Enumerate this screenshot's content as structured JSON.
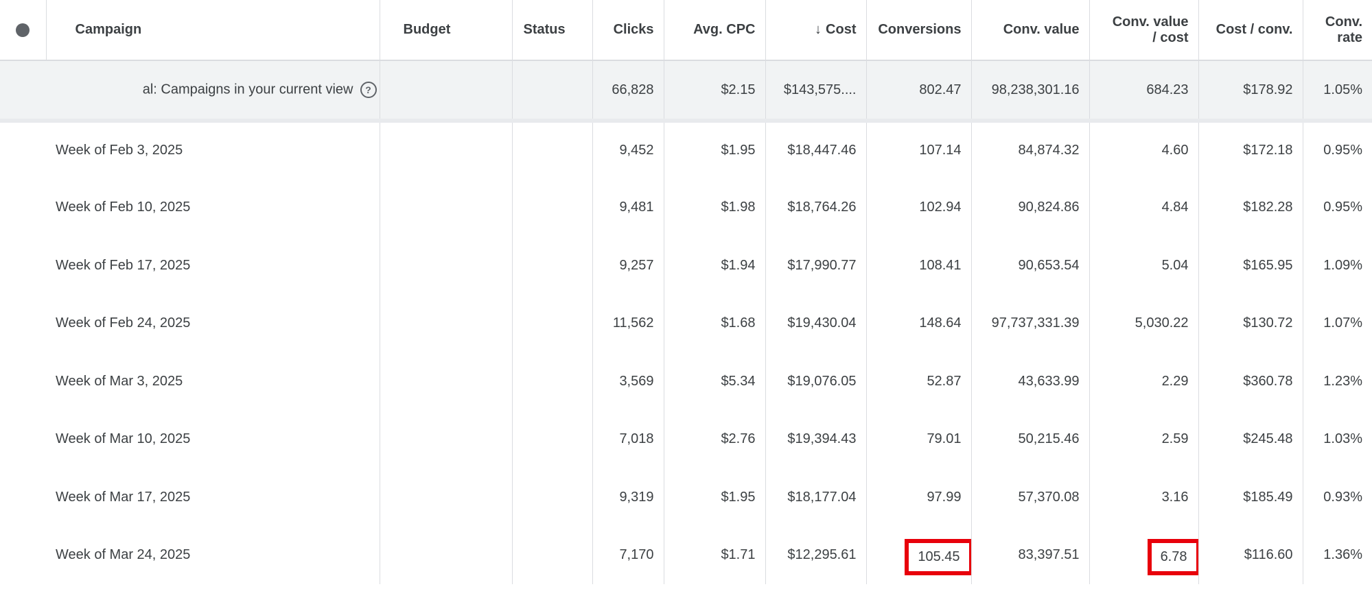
{
  "columns": {
    "campaign": "Campaign",
    "budget": "Budget",
    "status": "Status",
    "clicks": "Clicks",
    "avg_cpc": "Avg. CPC",
    "cost_arrow": "↓",
    "cost": "Cost",
    "conversions": "Conversions",
    "conv_value": "Conv. value",
    "conv_value_cost_line1": "Conv. value",
    "conv_value_cost_line2": "/ cost",
    "cost_per_conv": "Cost / conv.",
    "conv_rate_line1": "Conv.",
    "conv_rate_line2": "rate"
  },
  "total": {
    "label": "al: Campaigns in your current view",
    "help_icon": "?",
    "clicks": "66,828",
    "avg_cpc": "$2.15",
    "cost": "$143,575....",
    "conversions": "802.47",
    "conv_value": "98,238,301.16",
    "conv_value_cost": "684.23",
    "cost_per_conv": "$178.92",
    "conv_rate": "1.05%"
  },
  "rows": [
    {
      "campaign": "Week of Feb 3, 2025",
      "clicks": "9,452",
      "avg_cpc": "$1.95",
      "cost": "$18,447.46",
      "conversions": "107.14",
      "conv_value": "84,874.32",
      "conv_value_cost": "4.60",
      "cost_per_conv": "$172.18",
      "conv_rate": "0.95%"
    },
    {
      "campaign": "Week of Feb 10, 2025",
      "clicks": "9,481",
      "avg_cpc": "$1.98",
      "cost": "$18,764.26",
      "conversions": "102.94",
      "conv_value": "90,824.86",
      "conv_value_cost": "4.84",
      "cost_per_conv": "$182.28",
      "conv_rate": "0.95%"
    },
    {
      "campaign": "Week of Feb 17, 2025",
      "clicks": "9,257",
      "avg_cpc": "$1.94",
      "cost": "$17,990.77",
      "conversions": "108.41",
      "conv_value": "90,653.54",
      "conv_value_cost": "5.04",
      "cost_per_conv": "$165.95",
      "conv_rate": "1.09%"
    },
    {
      "campaign": "Week of Feb 24, 2025",
      "clicks": "11,562",
      "avg_cpc": "$1.68",
      "cost": "$19,430.04",
      "conversions": "148.64",
      "conv_value": "97,737,331.39",
      "conv_value_cost": "5,030.22",
      "cost_per_conv": "$130.72",
      "conv_rate": "1.07%"
    },
    {
      "campaign": "Week of Mar 3, 2025",
      "clicks": "3,569",
      "avg_cpc": "$5.34",
      "cost": "$19,076.05",
      "conversions": "52.87",
      "conv_value": "43,633.99",
      "conv_value_cost": "2.29",
      "cost_per_conv": "$360.78",
      "conv_rate": "1.23%"
    },
    {
      "campaign": "Week of Mar 10, 2025",
      "clicks": "7,018",
      "avg_cpc": "$2.76",
      "cost": "$19,394.43",
      "conversions": "79.01",
      "conv_value": "50,215.46",
      "conv_value_cost": "2.59",
      "cost_per_conv": "$245.48",
      "conv_rate": "1.03%"
    },
    {
      "campaign": "Week of Mar 17, 2025",
      "clicks": "9,319",
      "avg_cpc": "$1.95",
      "cost": "$18,177.04",
      "conversions": "97.99",
      "conv_value": "57,370.08",
      "conv_value_cost": "3.16",
      "cost_per_conv": "$185.49",
      "conv_rate": "0.93%"
    },
    {
      "campaign": "Week of Mar 24, 2025",
      "clicks": "7,170",
      "avg_cpc": "$1.71",
      "cost": "$12,295.61",
      "conversions": "105.45",
      "conv_value": "83,397.51",
      "conv_value_cost": "6.78",
      "cost_per_conv": "$116.60",
      "conv_rate": "1.36%"
    }
  ],
  "highlight_color": "#e8000b",
  "icons": {
    "status": "status-dot-icon",
    "sort": "sort-down-arrow-icon",
    "help": "help-circle-icon"
  }
}
